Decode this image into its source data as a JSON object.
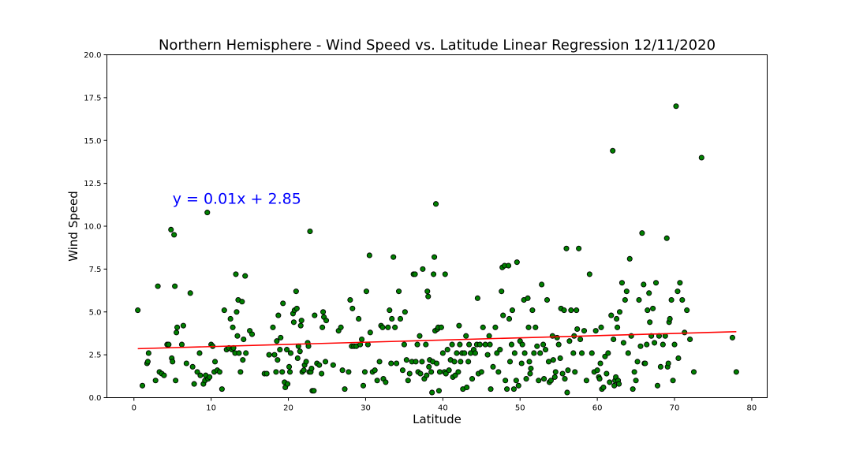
{
  "chart_data": {
    "type": "scatter",
    "title": "Northern Hemisphere - Wind Speed vs. Latitude Linear Regression 12/11/2020",
    "xlabel": "Latitude",
    "ylabel": "Wind Speed",
    "xlim": [
      -3.5,
      82
    ],
    "ylim": [
      0,
      20
    ],
    "xticks": [
      0,
      10,
      20,
      30,
      40,
      50,
      60,
      70,
      80
    ],
    "yticks": [
      0,
      2.5,
      5,
      7.5,
      10,
      12.5,
      15,
      17.5,
      20
    ],
    "xtick_labels": [
      "0",
      "10",
      "20",
      "30",
      "40",
      "50",
      "60",
      "70",
      "80"
    ],
    "ytick_labels": [
      "0.0",
      "2.5",
      "5.0",
      "7.5",
      "10.0",
      "12.5",
      "15.0",
      "17.5",
      "20.0"
    ],
    "grid": false,
    "legend": "none",
    "marker_color": "#008000",
    "marker_edge_color": "#000000",
    "regression": {
      "slope": 0.0128,
      "intercept": 2.85,
      "x_range": [
        0.5,
        78
      ],
      "color": "#ff0000",
      "equation": "y = 0.01x + 2.85",
      "equation_color": "#0000ff",
      "equation_anchor": [
        5,
        11.3
      ]
    },
    "points": [
      [
        0.5,
        5.1
      ],
      [
        1.1,
        0.7
      ],
      [
        1.7,
        2.0
      ],
      [
        1.8,
        2.1
      ],
      [
        1.9,
        2.6
      ],
      [
        2.8,
        1.0
      ],
      [
        3.1,
        6.5
      ],
      [
        3.3,
        1.5
      ],
      [
        3.6,
        1.4
      ],
      [
        3.9,
        1.3
      ],
      [
        4.3,
        3.1
      ],
      [
        4.5,
        3.1
      ],
      [
        4.8,
        9.8
      ],
      [
        4.9,
        2.3
      ],
      [
        5.0,
        2.1
      ],
      [
        5.2,
        9.5
      ],
      [
        5.3,
        6.5
      ],
      [
        5.4,
        1.0
      ],
      [
        5.5,
        3.8
      ],
      [
        5.6,
        4.1
      ],
      [
        6.2,
        3.1
      ],
      [
        6.4,
        4.2
      ],
      [
        6.8,
        2.0
      ],
      [
        7.3,
        6.1
      ],
      [
        7.6,
        1.8
      ],
      [
        7.8,
        0.8
      ],
      [
        8.2,
        1.5
      ],
      [
        8.5,
        2.6
      ],
      [
        8.6,
        1.3
      ],
      [
        9.0,
        0.8
      ],
      [
        9.2,
        1.0
      ],
      [
        9.3,
        1.3
      ],
      [
        9.5,
        10.8
      ],
      [
        9.6,
        1.1
      ],
      [
        9.8,
        1.2
      ],
      [
        10.0,
        3.1
      ],
      [
        10.2,
        3.0
      ],
      [
        10.4,
        1.5
      ],
      [
        10.5,
        2.1
      ],
      [
        10.8,
        1.6
      ],
      [
        11.1,
        1.5
      ],
      [
        11.4,
        0.5
      ],
      [
        11.7,
        5.1
      ],
      [
        12.0,
        2.8
      ],
      [
        12.3,
        2.9
      ],
      [
        12.5,
        4.6
      ],
      [
        12.7,
        2.8
      ],
      [
        12.8,
        4.1
      ],
      [
        12.9,
        2.9
      ],
      [
        13.1,
        2.6
      ],
      [
        13.2,
        7.2
      ],
      [
        13.3,
        5.0
      ],
      [
        13.4,
        3.6
      ],
      [
        13.5,
        5.7
      ],
      [
        13.6,
        2.6
      ],
      [
        13.8,
        1.5
      ],
      [
        14.0,
        5.6
      ],
      [
        14.1,
        2.2
      ],
      [
        14.2,
        3.4
      ],
      [
        14.4,
        7.1
      ],
      [
        14.5,
        2.6
      ],
      [
        15.0,
        3.9
      ],
      [
        15.3,
        3.7
      ],
      [
        16.9,
        1.4
      ],
      [
        17.2,
        1.4
      ],
      [
        17.5,
        2.5
      ],
      [
        18.0,
        4.1
      ],
      [
        18.2,
        2.5
      ],
      [
        18.4,
        1.5
      ],
      [
        18.5,
        3.3
      ],
      [
        18.6,
        2.2
      ],
      [
        18.7,
        4.8
      ],
      [
        18.9,
        2.8
      ],
      [
        19.0,
        3.5
      ],
      [
        19.2,
        1.5
      ],
      [
        19.3,
        5.5
      ],
      [
        19.5,
        0.9
      ],
      [
        19.6,
        0.6
      ],
      [
        19.8,
        2.8
      ],
      [
        19.9,
        0.8
      ],
      [
        20.1,
        1.8
      ],
      [
        20.2,
        1.5
      ],
      [
        20.3,
        2.6
      ],
      [
        20.6,
        4.9
      ],
      [
        20.7,
        4.4
      ],
      [
        20.8,
        5.1
      ],
      [
        21.0,
        6.2
      ],
      [
        21.1,
        5.2
      ],
      [
        21.2,
        2.3
      ],
      [
        21.3,
        3.0
      ],
      [
        21.5,
        2.7
      ],
      [
        21.6,
        4.2
      ],
      [
        21.7,
        4.5
      ],
      [
        21.8,
        1.5
      ],
      [
        22.0,
        1.6
      ],
      [
        22.1,
        1.9
      ],
      [
        22.3,
        2.1
      ],
      [
        22.5,
        3.2
      ],
      [
        22.6,
        3.0
      ],
      [
        22.7,
        1.5
      ],
      [
        22.8,
        9.7
      ],
      [
        22.9,
        1.5
      ],
      [
        23.0,
        1.7
      ],
      [
        23.1,
        0.4
      ],
      [
        23.3,
        0.4
      ],
      [
        23.4,
        4.8
      ],
      [
        23.7,
        2.0
      ],
      [
        24.0,
        1.9
      ],
      [
        24.3,
        1.4
      ],
      [
        24.4,
        4.1
      ],
      [
        24.5,
        5.0
      ],
      [
        24.6,
        4.7
      ],
      [
        24.8,
        2.1
      ],
      [
        24.9,
        4.5
      ],
      [
        25.8,
        1.9
      ],
      [
        26.5,
        3.9
      ],
      [
        26.8,
        4.1
      ],
      [
        27.0,
        1.6
      ],
      [
        27.3,
        0.5
      ],
      [
        27.8,
        1.5
      ],
      [
        28.0,
        5.7
      ],
      [
        28.2,
        3.0
      ],
      [
        28.3,
        5.2
      ],
      [
        28.5,
        3.0
      ],
      [
        28.8,
        3.0
      ],
      [
        29.1,
        4.6
      ],
      [
        29.3,
        3.1
      ],
      [
        29.5,
        3.4
      ],
      [
        29.7,
        0.7
      ],
      [
        29.9,
        1.5
      ],
      [
        30.1,
        6.2
      ],
      [
        30.3,
        3.1
      ],
      [
        30.5,
        8.3
      ],
      [
        30.6,
        3.8
      ],
      [
        30.9,
        1.5
      ],
      [
        31.2,
        1.6
      ],
      [
        31.5,
        1.0
      ],
      [
        31.8,
        2.1
      ],
      [
        32.0,
        4.2
      ],
      [
        32.2,
        4.1
      ],
      [
        32.3,
        1.1
      ],
      [
        32.6,
        0.9
      ],
      [
        32.9,
        4.1
      ],
      [
        33.1,
        5.1
      ],
      [
        33.3,
        2.0
      ],
      [
        33.4,
        4.6
      ],
      [
        33.6,
        8.2
      ],
      [
        33.8,
        4.1
      ],
      [
        34.0,
        2.0
      ],
      [
        34.3,
        6.2
      ],
      [
        34.5,
        4.6
      ],
      [
        34.8,
        1.6
      ],
      [
        35.0,
        3.1
      ],
      [
        35.1,
        5.0
      ],
      [
        35.3,
        2.2
      ],
      [
        35.5,
        1.0
      ],
      [
        35.7,
        1.4
      ],
      [
        36.0,
        2.1
      ],
      [
        36.2,
        7.2
      ],
      [
        36.4,
        7.2
      ],
      [
        36.5,
        2.1
      ],
      [
        36.7,
        3.1
      ],
      [
        36.8,
        1.5
      ],
      [
        37.0,
        3.6
      ],
      [
        37.1,
        1.4
      ],
      [
        37.3,
        2.1
      ],
      [
        37.4,
        7.5
      ],
      [
        37.6,
        1.1
      ],
      [
        37.8,
        3.1
      ],
      [
        37.9,
        1.3
      ],
      [
        38.0,
        6.2
      ],
      [
        38.1,
        5.9
      ],
      [
        38.2,
        1.8
      ],
      [
        38.3,
        2.2
      ],
      [
        38.5,
        1.5
      ],
      [
        38.6,
        0.3
      ],
      [
        38.7,
        2.1
      ],
      [
        38.8,
        7.2
      ],
      [
        38.9,
        8.2
      ],
      [
        39.0,
        3.9
      ],
      [
        39.1,
        11.3
      ],
      [
        39.2,
        2.0
      ],
      [
        39.3,
        4.0
      ],
      [
        39.4,
        4.1
      ],
      [
        39.5,
        0.4
      ],
      [
        39.6,
        1.5
      ],
      [
        39.8,
        4.1
      ],
      [
        40.0,
        2.6
      ],
      [
        40.2,
        1.5
      ],
      [
        40.3,
        7.2
      ],
      [
        40.4,
        1.4
      ],
      [
        40.6,
        2.8
      ],
      [
        40.8,
        1.6
      ],
      [
        41.0,
        2.2
      ],
      [
        41.2,
        3.1
      ],
      [
        41.3,
        1.2
      ],
      [
        41.5,
        2.1
      ],
      [
        41.6,
        1.3
      ],
      [
        41.8,
        2.6
      ],
      [
        42.0,
        1.5
      ],
      [
        42.1,
        4.2
      ],
      [
        42.2,
        3.1
      ],
      [
        42.3,
        2.1
      ],
      [
        42.5,
        2.6
      ],
      [
        42.6,
        0.5
      ],
      [
        42.8,
        2.6
      ],
      [
        43.0,
        3.6
      ],
      [
        43.1,
        0.6
      ],
      [
        43.3,
        2.1
      ],
      [
        43.4,
        3.1
      ],
      [
        43.6,
        2.6
      ],
      [
        43.8,
        1.1
      ],
      [
        44.0,
        2.8
      ],
      [
        44.2,
        2.6
      ],
      [
        44.4,
        3.1
      ],
      [
        44.5,
        5.8
      ],
      [
        44.6,
        1.4
      ],
      [
        44.8,
        3.1
      ],
      [
        45.0,
        1.5
      ],
      [
        45.2,
        4.1
      ],
      [
        45.5,
        3.1
      ],
      [
        45.8,
        2.5
      ],
      [
        46.0,
        3.6
      ],
      [
        46.1,
        3.1
      ],
      [
        46.2,
        0.5
      ],
      [
        46.5,
        1.8
      ],
      [
        46.8,
        4.1
      ],
      [
        47.0,
        2.6
      ],
      [
        47.2,
        1.5
      ],
      [
        47.4,
        2.8
      ],
      [
        47.6,
        6.2
      ],
      [
        47.7,
        7.6
      ],
      [
        47.8,
        4.8
      ],
      [
        48.0,
        7.7
      ],
      [
        48.1,
        1.0
      ],
      [
        48.3,
        0.5
      ],
      [
        48.5,
        7.7
      ],
      [
        48.6,
        4.6
      ],
      [
        48.7,
        2.1
      ],
      [
        48.9,
        3.1
      ],
      [
        49.0,
        5.1
      ],
      [
        49.2,
        0.5
      ],
      [
        49.3,
        2.6
      ],
      [
        49.5,
        1.0
      ],
      [
        49.6,
        7.9
      ],
      [
        49.8,
        0.7
      ],
      [
        50.0,
        3.3
      ],
      [
        50.2,
        2.0
      ],
      [
        50.3,
        3.1
      ],
      [
        50.5,
        5.7
      ],
      [
        50.6,
        2.6
      ],
      [
        50.8,
        1.1
      ],
      [
        51.0,
        5.8
      ],
      [
        51.1,
        4.1
      ],
      [
        51.2,
        2.1
      ],
      [
        51.3,
        1.4
      ],
      [
        51.4,
        1.7
      ],
      [
        51.6,
        5.1
      ],
      [
        51.8,
        2.6
      ],
      [
        52.0,
        4.1
      ],
      [
        52.2,
        3.0
      ],
      [
        52.4,
        1.0
      ],
      [
        52.6,
        2.6
      ],
      [
        52.8,
        6.6
      ],
      [
        53.0,
        3.1
      ],
      [
        53.1,
        1.1
      ],
      [
        53.3,
        2.8
      ],
      [
        53.5,
        5.7
      ],
      [
        53.7,
        2.1
      ],
      [
        53.8,
        0.9
      ],
      [
        54.0,
        1.0
      ],
      [
        54.2,
        3.6
      ],
      [
        54.3,
        2.2
      ],
      [
        54.5,
        1.2
      ],
      [
        54.6,
        1.5
      ],
      [
        54.8,
        3.5
      ],
      [
        55.0,
        3.1
      ],
      [
        55.2,
        2.3
      ],
      [
        55.3,
        5.2
      ],
      [
        55.5,
        1.4
      ],
      [
        55.7,
        5.1
      ],
      [
        55.8,
        1.1
      ],
      [
        56.0,
        8.7
      ],
      [
        56.1,
        0.3
      ],
      [
        56.2,
        1.6
      ],
      [
        56.4,
        3.3
      ],
      [
        56.6,
        5.1
      ],
      [
        56.9,
        2.6
      ],
      [
        57.0,
        3.6
      ],
      [
        57.1,
        1.5
      ],
      [
        57.3,
        5.1
      ],
      [
        57.4,
        4.0
      ],
      [
        57.6,
        8.7
      ],
      [
        57.8,
        3.4
      ],
      [
        58.0,
        2.6
      ],
      [
        58.3,
        3.9
      ],
      [
        58.6,
        1.0
      ],
      [
        59.0,
        7.2
      ],
      [
        59.3,
        2.6
      ],
      [
        59.6,
        1.5
      ],
      [
        59.8,
        3.9
      ],
      [
        60.0,
        1.6
      ],
      [
        60.2,
        1.2
      ],
      [
        60.3,
        1.1
      ],
      [
        60.4,
        2.0
      ],
      [
        60.5,
        4.1
      ],
      [
        60.6,
        0.5
      ],
      [
        60.8,
        0.6
      ],
      [
        61.0,
        2.4
      ],
      [
        61.2,
        1.4
      ],
      [
        61.4,
        2.6
      ],
      [
        61.6,
        0.9
      ],
      [
        61.8,
        4.8
      ],
      [
        62.0,
        14.4
      ],
      [
        62.1,
        3.4
      ],
      [
        62.2,
        0.7
      ],
      [
        62.3,
        1.0
      ],
      [
        62.4,
        1.2
      ],
      [
        62.5,
        4.6
      ],
      [
        62.6,
        4.1
      ],
      [
        62.7,
        1.0
      ],
      [
        62.8,
        0.8
      ],
      [
        62.9,
        5.0
      ],
      [
        63.2,
        6.7
      ],
      [
        63.4,
        3.2
      ],
      [
        63.6,
        5.7
      ],
      [
        63.8,
        6.2
      ],
      [
        64.0,
        2.6
      ],
      [
        64.2,
        8.1
      ],
      [
        64.4,
        3.6
      ],
      [
        64.6,
        0.5
      ],
      [
        64.8,
        1.5
      ],
      [
        65.0,
        1.0
      ],
      [
        65.2,
        2.1
      ],
      [
        65.4,
        5.7
      ],
      [
        65.6,
        3.0
      ],
      [
        65.8,
        9.6
      ],
      [
        66.0,
        6.6
      ],
      [
        66.1,
        2.0
      ],
      [
        66.2,
        2.0
      ],
      [
        66.4,
        3.1
      ],
      [
        66.5,
        5.1
      ],
      [
        66.7,
        6.1
      ],
      [
        66.8,
        4.4
      ],
      [
        67.0,
        3.6
      ],
      [
        67.2,
        5.2
      ],
      [
        67.4,
        3.2
      ],
      [
        67.6,
        6.7
      ],
      [
        67.8,
        0.7
      ],
      [
        68.0,
        3.6
      ],
      [
        68.2,
        1.8
      ],
      [
        68.5,
        3.1
      ],
      [
        68.8,
        3.6
      ],
      [
        69.0,
        9.3
      ],
      [
        69.1,
        1.8
      ],
      [
        69.2,
        2.0
      ],
      [
        69.3,
        4.4
      ],
      [
        69.4,
        4.6
      ],
      [
        69.6,
        5.7
      ],
      [
        69.8,
        1.0
      ],
      [
        70.0,
        3.1
      ],
      [
        70.2,
        17.0
      ],
      [
        70.4,
        6.2
      ],
      [
        70.5,
        2.3
      ],
      [
        70.7,
        6.7
      ],
      [
        71.0,
        5.7
      ],
      [
        71.3,
        3.8
      ],
      [
        71.6,
        5.1
      ],
      [
        72.0,
        3.4
      ],
      [
        72.5,
        1.5
      ],
      [
        73.5,
        14.0
      ],
      [
        77.5,
        3.5
      ],
      [
        78.0,
        1.5
      ]
    ]
  }
}
